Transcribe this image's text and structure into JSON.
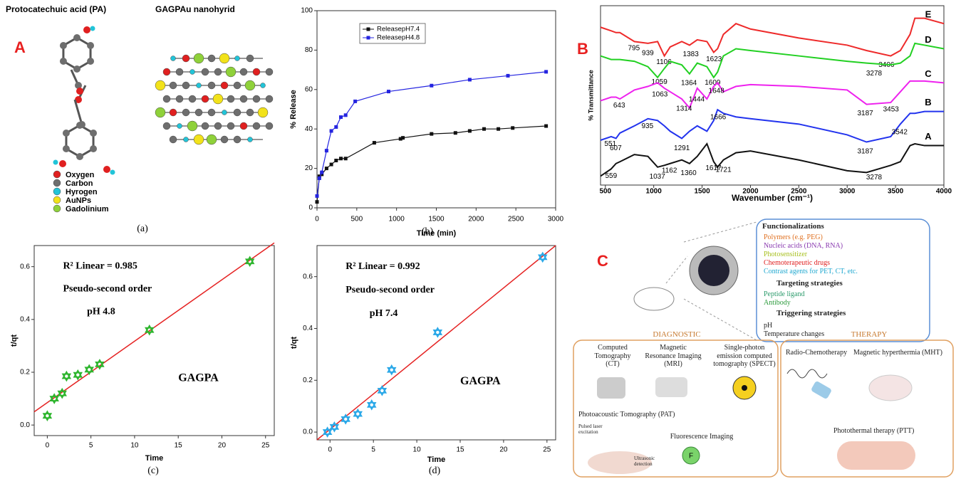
{
  "panel_a": {
    "label": "A",
    "left_title": "Protocatechuic acid (PA)",
    "right_title": "GAGPAu nanohyrid",
    "caption": "(a)",
    "legend": [
      {
        "name": "Oxygen",
        "color": "#e02020"
      },
      {
        "name": "Carbon",
        "color": "#6e6e6e"
      },
      {
        "name": "Hyrogen",
        "color": "#22c4d8"
      },
      {
        "name": "AuNPs",
        "color": "#f2e21a"
      },
      {
        "name": "Gadolinium",
        "color": "#8fd13a"
      }
    ]
  },
  "chart_data": [
    {
      "type": "line",
      "caption": "(b)",
      "xlabel": "Time (min)",
      "ylabel": "% Release",
      "xlim": [
        0,
        3000
      ],
      "xticks": [
        0,
        500,
        1000,
        1500,
        2000,
        2500,
        3000
      ],
      "ylim": [
        0,
        100
      ],
      "yticks": [
        0,
        20,
        40,
        60,
        80,
        100
      ],
      "legend": "upper left",
      "marker": "square",
      "series": [
        {
          "name": "ReleasepH7.4",
          "color": "#111111",
          "x": [
            0,
            30,
            60,
            120,
            180,
            240,
            300,
            360,
            720,
            1050,
            1080,
            1440,
            1740,
            1920,
            2100,
            2280,
            2460,
            2880
          ],
          "values": [
            3,
            16,
            17,
            20,
            22,
            24,
            25,
            25,
            33,
            35,
            35.5,
            37.5,
            38,
            39,
            40,
            40,
            40.5,
            41.5
          ]
        },
        {
          "name": "ReleasepH4.8",
          "color": "#2424e0",
          "x": [
            0,
            30,
            60,
            120,
            180,
            240,
            300,
            360,
            480,
            900,
            1440,
            1920,
            2400,
            2880
          ],
          "values": [
            6,
            15,
            18,
            29,
            39,
            41,
            46,
            47,
            54,
            59,
            62,
            65,
            67,
            69
          ]
        }
      ]
    },
    {
      "type": "scatter",
      "caption": "(c)",
      "xlabel": "Time",
      "ylabel": "t/qt",
      "xlim": [
        -1.5,
        26
      ],
      "xticks": [
        0,
        5,
        10,
        15,
        20,
        25
      ],
      "ylim": [
        -0.04,
        0.68
      ],
      "yticks": [
        {
          "value": 0,
          "label": "0.0"
        },
        0.2,
        0.4,
        0.6
      ],
      "marker": "star6",
      "annotations": [
        "R² Linear = 0.985",
        "Pseudo-second order",
        "pH 4.8",
        "GAGPA"
      ],
      "series": [
        {
          "color": "#2db52d",
          "x": [
            0,
            0.8,
            1.7,
            2.2,
            3.5,
            4.8,
            6,
            11.7,
            23.2
          ],
          "values": [
            0.035,
            0.1,
            0.12,
            0.185,
            0.19,
            0.21,
            0.23,
            0.36,
            0.62
          ]
        }
      ],
      "fit": {
        "color": "#e52222",
        "x": [
          -1.5,
          26
        ],
        "values": [
          0.05,
          0.69
        ]
      }
    },
    {
      "type": "scatter",
      "caption": "(d)",
      "xlabel": "Time",
      "ylabel": "t/qt",
      "xlim": [
        -1.5,
        26
      ],
      "xticks": [
        0,
        5,
        10,
        15,
        20,
        25
      ],
      "ylim": [
        -0.03,
        0.72
      ],
      "yticks": [
        {
          "value": 0,
          "label": "0.0"
        },
        0.2,
        0.4,
        0.6
      ],
      "marker": "star6",
      "annotations": [
        "R² Linear = 0.992",
        "Pseudo-second order",
        "pH 7.4",
        "GAGPA"
      ],
      "series": [
        {
          "color": "#2aa8e8",
          "x": [
            -0.3,
            0.5,
            1.8,
            3.2,
            4.8,
            6,
            7.1,
            12.4,
            24.5
          ],
          "values": [
            0,
            0.02,
            0.05,
            0.07,
            0.105,
            0.16,
            0.24,
            0.385,
            0.675
          ]
        }
      ],
      "fit": {
        "color": "#e52222",
        "x": [
          -1.5,
          26
        ],
        "values": [
          -0.03,
          0.72
        ]
      }
    },
    {
      "type": "line",
      "label": "B",
      "xlabel": "Wavenumber (cm⁻¹)",
      "ylabel": "% Transmittance",
      "xlim": [
        450,
        4000
      ],
      "xticks": [
        500,
        1000,
        1500,
        2000,
        2500,
        3000,
        3500,
        4000
      ],
      "ylim": [
        0,
        100
      ],
      "x": [
        450,
        560,
        610,
        650,
        800,
        940,
        1040,
        1110,
        1170,
        1290,
        1370,
        1450,
        1550,
        1620,
        1660,
        1720,
        1850,
        2000,
        2500,
        3000,
        3200,
        3450,
        3550,
        3650,
        3700,
        3800,
        4000
      ],
      "series": [
        {
          "name": "E",
          "color": "#ee2a2a",
          "values": [
            88,
            86,
            85,
            85,
            80,
            79,
            80,
            72,
            77,
            80,
            78,
            81,
            80,
            74,
            76,
            84,
            90,
            87,
            82,
            78,
            75,
            72,
            75,
            84,
            93,
            93,
            90
          ],
          "peaks": [
            795,
            939,
            1106,
            1383,
            1623,
            3406
          ]
        },
        {
          "name": "D",
          "color": "#22d022",
          "values": [
            72,
            70,
            70,
            70,
            69,
            66,
            60,
            65,
            69,
            67,
            62,
            68,
            66,
            60,
            63,
            72,
            76,
            75,
            72,
            69,
            68,
            67,
            68,
            72,
            79,
            78,
            76
          ],
          "peaks": [
            1059,
            1364,
            1609,
            3278
          ]
        },
        {
          "name": "C",
          "color": "#ee22ee",
          "values": [
            47,
            49,
            49,
            48,
            53,
            55,
            57,
            54,
            52,
            48,
            43,
            54,
            48,
            55,
            57,
            52,
            55,
            56,
            55,
            53,
            45,
            46,
            52,
            58,
            58,
            58,
            57
          ],
          "peaks": [
            643,
            1063,
            1314,
            1444,
            1648,
            3187,
            3453
          ]
        },
        {
          "name": "B",
          "color": "#2233ee",
          "values": [
            25,
            27,
            26,
            29,
            33,
            37,
            36,
            33,
            30,
            26,
            30,
            33,
            30,
            36,
            42,
            40,
            38,
            37,
            34,
            28,
            24,
            27,
            34,
            40,
            40,
            41,
            41
          ],
          "peaks": [
            551,
            607,
            935,
            1291,
            1666,
            3187,
            3542
          ]
        },
        {
          "name": "A",
          "color": "#111111",
          "values": [
            5,
            9,
            12,
            13,
            17,
            16,
            10,
            11,
            12,
            14,
            12,
            16,
            23,
            13,
            10,
            14,
            18,
            19,
            14,
            8,
            7,
            11,
            13,
            22,
            23,
            22,
            22
          ],
          "peaks": [
            559,
            1037,
            1162,
            1360,
            1617,
            1721,
            3278
          ]
        }
      ]
    }
  ],
  "panel_c": {
    "label": "C",
    "functionalizations": {
      "title": "Functionalizations",
      "items": [
        "Polymers (e.g. PEG)",
        "Nucleic acids (DNA, RNA)",
        "Photosensitizer",
        "Chemoterapeutic drugs",
        "Contrast agents for PET, CT, etc."
      ]
    },
    "targeting": {
      "title": "Targeting strategies",
      "items": [
        "Peptide ligand",
        "Antibody"
      ]
    },
    "triggering": {
      "title": "Triggering strategies",
      "items": [
        "pH",
        "Temperature changes"
      ]
    },
    "diagnostic": {
      "title": "DIAGNOSTIC",
      "items": [
        "Computed Tomography (CT)",
        "Magnetic Resonance Imaging (MRI)",
        "Single-photon emission computed tomography (SPECT)",
        "Photoacoustic Tomography (PAT)",
        "Fluorescence Imaging"
      ],
      "notes": [
        "Pulsed laser excitation",
        "Ultrasonic detection"
      ],
      "icon": "F"
    },
    "therapy": {
      "title": "THERAPY",
      "items": [
        "Radio-Chemotherapy",
        "Magnetic hyperthermia (MHT)",
        "Photothermal therapy (PTT)"
      ]
    }
  }
}
